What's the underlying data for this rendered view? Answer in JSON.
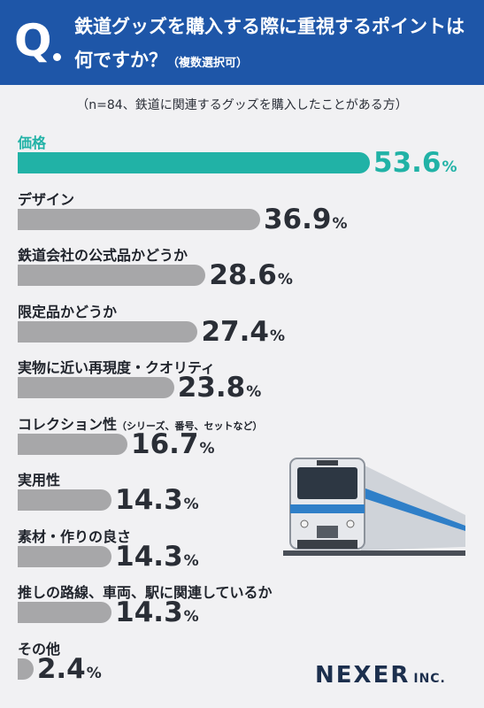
{
  "header": {
    "q_mark": "Q",
    "question_line1": "鉄道グッズを購入する際に重視するポイントは",
    "question_line2": "何ですか？",
    "question_note": "（複数選択可）"
  },
  "subtitle": "（n=84、鉄道に関連するグッズを購入したことがある方）",
  "colors": {
    "highlight": "#21b2a6",
    "bar": "#a7a7a9",
    "header": "#1e56a8",
    "text": "#2a2e36"
  },
  "chart_data": {
    "type": "bar",
    "orientation": "horizontal",
    "categories": [
      "価格",
      "デザイン",
      "鉄道会社の公式品かどうか",
      "限定品かどうか",
      "実物に近い再現度・クオリティ",
      "コレクション性",
      "実用性",
      "素材・作りの良さ",
      "推しの路線、車両、駅に関連しているか",
      "その他"
    ],
    "category_notes": [
      "",
      "",
      "",
      "",
      "",
      "（シリーズ、番号、セットなど）",
      "",
      "",
      "",
      ""
    ],
    "values": [
      53.6,
      36.9,
      28.6,
      27.4,
      23.8,
      16.7,
      14.3,
      14.3,
      14.3,
      2.4
    ],
    "value_labels": [
      "53.6",
      "36.9",
      "28.6",
      "27.4",
      "23.8",
      "16.7",
      "14.3",
      "14.3",
      "14.3",
      "2.4"
    ],
    "unit": "%",
    "highlight_index": 0
  },
  "logo": {
    "name": "NEXER",
    "suffix": "INC."
  }
}
